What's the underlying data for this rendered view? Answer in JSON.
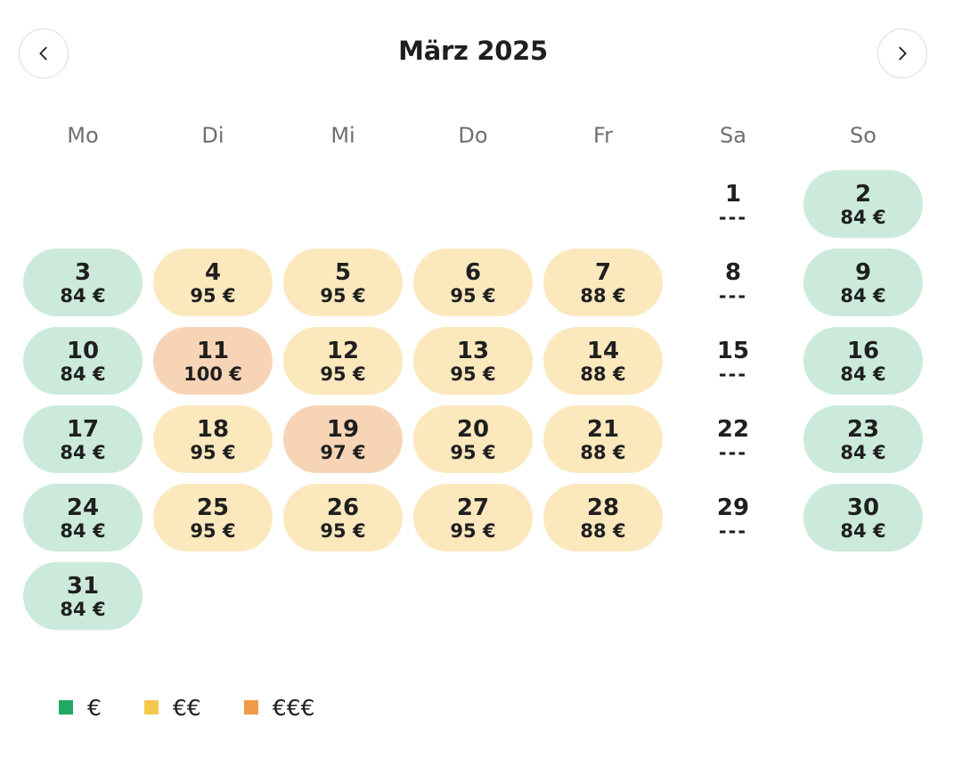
{
  "calendar": {
    "title": "März 2025",
    "prev_icon": "chevron-left-icon",
    "next_icon": "chevron-right-icon",
    "weekdays": [
      "Mo",
      "Di",
      "Mi",
      "Do",
      "Fr",
      "Sa",
      "So"
    ],
    "first_weekday_index": 5,
    "days": [
      {
        "day": "1",
        "price": "---",
        "level": 0
      },
      {
        "day": "2",
        "price": "84 €",
        "level": 1
      },
      {
        "day": "3",
        "price": "84 €",
        "level": 1
      },
      {
        "day": "4",
        "price": "95 €",
        "level": 2
      },
      {
        "day": "5",
        "price": "95 €",
        "level": 2
      },
      {
        "day": "6",
        "price": "95 €",
        "level": 2
      },
      {
        "day": "7",
        "price": "88 €",
        "level": 2
      },
      {
        "day": "8",
        "price": "---",
        "level": 0
      },
      {
        "day": "9",
        "price": "84 €",
        "level": 1
      },
      {
        "day": "10",
        "price": "84 €",
        "level": 1
      },
      {
        "day": "11",
        "price": "100 €",
        "level": 3
      },
      {
        "day": "12",
        "price": "95 €",
        "level": 2
      },
      {
        "day": "13",
        "price": "95 €",
        "level": 2
      },
      {
        "day": "14",
        "price": "88 €",
        "level": 2
      },
      {
        "day": "15",
        "price": "---",
        "level": 0
      },
      {
        "day": "16",
        "price": "84 €",
        "level": 1
      },
      {
        "day": "17",
        "price": "84 €",
        "level": 1
      },
      {
        "day": "18",
        "price": "95 €",
        "level": 2
      },
      {
        "day": "19",
        "price": "97 €",
        "level": 3
      },
      {
        "day": "20",
        "price": "95 €",
        "level": 2
      },
      {
        "day": "21",
        "price": "88 €",
        "level": 2
      },
      {
        "day": "22",
        "price": "---",
        "level": 0
      },
      {
        "day": "23",
        "price": "84 €",
        "level": 1
      },
      {
        "day": "24",
        "price": "84 €",
        "level": 1
      },
      {
        "day": "25",
        "price": "95 €",
        "level": 2
      },
      {
        "day": "26",
        "price": "95 €",
        "level": 2
      },
      {
        "day": "27",
        "price": "95 €",
        "level": 2
      },
      {
        "day": "28",
        "price": "88 €",
        "level": 2
      },
      {
        "day": "29",
        "price": "---",
        "level": 0
      },
      {
        "day": "30",
        "price": "84 €",
        "level": 1
      },
      {
        "day": "31",
        "price": "84 €",
        "level": 1
      }
    ]
  },
  "colors": {
    "level_1_bg": "#cbeadb",
    "level_2_bg": "#fbe8bd",
    "level_3_bg": "#f8d4b6",
    "legend_1": "#22a865",
    "legend_2": "#f2c94c",
    "legend_3": "#f2994a"
  },
  "legend": [
    {
      "label": "€",
      "color": "#22a865"
    },
    {
      "label": "€€",
      "color": "#f2c94c"
    },
    {
      "label": "€€€",
      "color": "#f2994a"
    }
  ]
}
